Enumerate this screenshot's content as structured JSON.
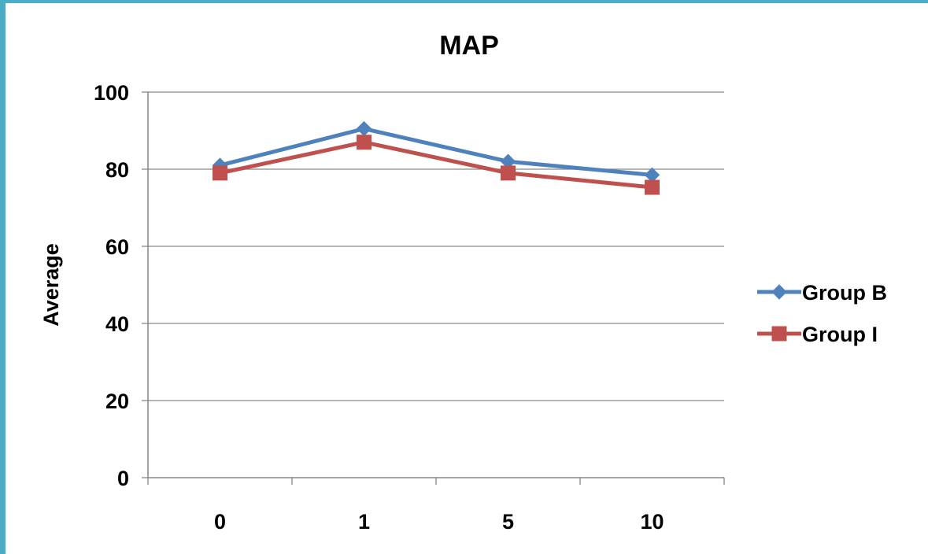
{
  "chart_data": {
    "type": "line",
    "title": "MAP",
    "xlabel": "",
    "ylabel": "Average",
    "categories": [
      "0",
      "1",
      "5",
      "10"
    ],
    "ylim": [
      0,
      100
    ],
    "yticks": [
      "0",
      "20",
      "40",
      "60",
      "80",
      "100"
    ],
    "grid": true,
    "legend_position": "right",
    "series": [
      {
        "name": "Group B",
        "values": [
          81,
          90.5,
          82,
          78.5
        ],
        "color": "#4f81bd",
        "marker": "diamond"
      },
      {
        "name": "Group I",
        "values": [
          79,
          87,
          79,
          75.3
        ],
        "color": "#c0504d",
        "marker": "square"
      }
    ]
  }
}
